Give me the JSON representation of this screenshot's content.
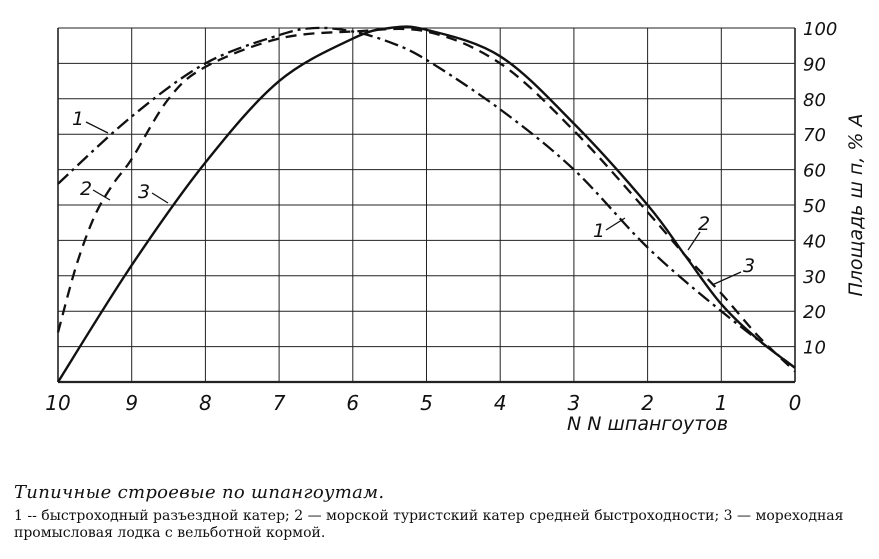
{
  "chart_data": {
    "type": "line",
    "xlabel": "N N шпангоутов",
    "ylabel": "Площадь ш п, % A",
    "x_ticks": [
      "10",
      "9",
      "8",
      "7",
      "6",
      "5",
      "4",
      "3",
      "2",
      "1",
      "0"
    ],
    "y_ticks": [
      "10",
      "20",
      "30",
      "40",
      "50",
      "60",
      "70",
      "80",
      "90",
      "100"
    ],
    "xlim": [
      10,
      0
    ],
    "ylim": [
      0,
      100
    ],
    "grid": true,
    "series": [
      {
        "name": "1",
        "style": "dash-dot",
        "x": [
          10,
          9,
          8,
          7,
          6.5,
          6,
          5.5,
          5,
          4,
          3,
          2,
          1,
          0
        ],
        "y": [
          56,
          75,
          90,
          98,
          100,
          99,
          96,
          91,
          77,
          60,
          38,
          20,
          4
        ]
      },
      {
        "name": "2",
        "style": "dashed",
        "x": [
          10,
          9.75,
          9.5,
          9.25,
          9,
          8.5,
          8,
          7,
          6,
          5,
          4,
          3,
          2,
          1.5,
          1,
          0.5,
          0
        ],
        "y": [
          14,
          33,
          47,
          56,
          63,
          80,
          89,
          97,
          99,
          99,
          90,
          71,
          48,
          36,
          25,
          13,
          3
        ]
      },
      {
        "name": "3",
        "style": "solid",
        "x": [
          10,
          9,
          8,
          7,
          6,
          5.5,
          5,
          4,
          3,
          2,
          1.5,
          1,
          0.5,
          0
        ],
        "y": [
          0,
          33,
          62,
          85,
          97,
          100,
          99.5,
          92,
          73,
          50,
          36,
          22,
          12,
          4
        ]
      }
    ],
    "curve_labels": [
      "1",
      "2",
      "3",
      "1",
      "2",
      "3"
    ]
  },
  "caption": {
    "title": "Типичные строевые по шпангоутам.",
    "legend": "1 -- быстроходный разъездной катер; 2 — морской туристский катер средней быстроходности; 3 — мореходная промысловая лодка с вельботной кормой."
  }
}
